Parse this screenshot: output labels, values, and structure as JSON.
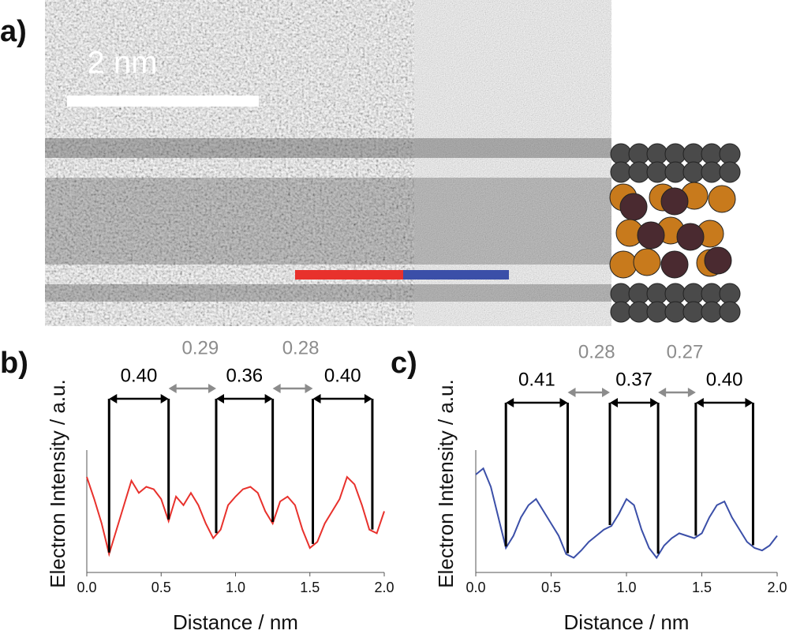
{
  "panel_a": {
    "label": "a)",
    "scale_bar": "2 nm"
  },
  "chart_data": [
    {
      "type": "line",
      "panel_label": "b)",
      "xlabel": "Distance / nm",
      "ylabel": "Electron Intensity / a.u.",
      "xlim": [
        0,
        2
      ],
      "xticks": [
        {
          "value": 0,
          "label": "0.0"
        },
        0.5,
        {
          "value": 1,
          "label": "1.0"
        },
        1.5,
        {
          "value": 2,
          "label": "2.0"
        }
      ],
      "ylim": [
        0,
        1
      ],
      "color": "#e8312c",
      "x": [
        0,
        0.05,
        0.1,
        0.15,
        0.2,
        0.25,
        0.3,
        0.35,
        0.4,
        0.45,
        0.5,
        0.55,
        0.6,
        0.65,
        0.7,
        0.75,
        0.8,
        0.85,
        0.9,
        0.95,
        1,
        1.05,
        1.1,
        1.15,
        1.2,
        1.25,
        1.3,
        1.35,
        1.4,
        1.45,
        1.5,
        1.55,
        1.6,
        1.65,
        1.7,
        1.75,
        1.8,
        1.85,
        1.9,
        1.95,
        2
      ],
      "values": [
        0.78,
        0.6,
        0.4,
        0.15,
        0.35,
        0.55,
        0.75,
        0.65,
        0.7,
        0.68,
        0.6,
        0.42,
        0.62,
        0.55,
        0.65,
        0.55,
        0.4,
        0.28,
        0.35,
        0.55,
        0.62,
        0.68,
        0.7,
        0.65,
        0.5,
        0.4,
        0.58,
        0.62,
        0.55,
        0.35,
        0.2,
        0.25,
        0.4,
        0.5,
        0.6,
        0.78,
        0.72,
        0.55,
        0.35,
        0.32,
        0.5
      ],
      "annotations": [
        {
          "text": "0.40",
          "start": 0.15,
          "end": 0.55,
          "color": "#000000"
        },
        {
          "text": "0.29",
          "start": 0.55,
          "end": 0.87,
          "color": "#8c8c8c"
        },
        {
          "text": "0.36",
          "start": 0.87,
          "end": 1.25,
          "color": "#000000"
        },
        {
          "text": "0.28",
          "start": 1.25,
          "end": 1.52,
          "color": "#8c8c8c"
        },
        {
          "text": "0.40",
          "start": 1.52,
          "end": 1.92,
          "color": "#000000"
        }
      ]
    },
    {
      "type": "line",
      "panel_label": "c)",
      "xlabel": "Distance / nm",
      "ylabel": "Electron Intensity / a.u.",
      "xlim": [
        0,
        2
      ],
      "xticks": [
        {
          "value": 0,
          "label": "0.0"
        },
        0.5,
        {
          "value": 1,
          "label": "1.0"
        },
        1.5,
        {
          "value": 2,
          "label": "2.0"
        }
      ],
      "ylim": [
        0,
        1
      ],
      "color": "#3b4fa8",
      "x": [
        0,
        0.05,
        0.1,
        0.15,
        0.2,
        0.25,
        0.3,
        0.35,
        0.4,
        0.45,
        0.5,
        0.55,
        0.6,
        0.65,
        0.7,
        0.75,
        0.8,
        0.85,
        0.9,
        0.95,
        1,
        1.05,
        1.1,
        1.15,
        1.2,
        1.25,
        1.3,
        1.35,
        1.4,
        1.45,
        1.5,
        1.55,
        1.6,
        1.65,
        1.7,
        1.75,
        1.8,
        1.85,
        1.9,
        1.95,
        2
      ],
      "values": [
        0.8,
        0.85,
        0.7,
        0.45,
        0.2,
        0.3,
        0.45,
        0.55,
        0.6,
        0.5,
        0.4,
        0.3,
        0.15,
        0.12,
        0.18,
        0.25,
        0.3,
        0.35,
        0.38,
        0.48,
        0.6,
        0.55,
        0.35,
        0.2,
        0.12,
        0.22,
        0.28,
        0.32,
        0.3,
        0.28,
        0.32,
        0.45,
        0.55,
        0.58,
        0.45,
        0.35,
        0.25,
        0.2,
        0.18,
        0.22,
        0.3
      ],
      "annotations": [
        {
          "text": "0.41",
          "start": 0.2,
          "end": 0.61,
          "color": "#000000"
        },
        {
          "text": "0.28",
          "start": 0.61,
          "end": 0.89,
          "color": "#8c8c8c"
        },
        {
          "text": "0.37",
          "start": 0.89,
          "end": 1.21,
          "color": "#000000"
        },
        {
          "text": "0.27",
          "start": 1.21,
          "end": 1.46,
          "color": "#8c8c8c"
        },
        {
          "text": "0.40",
          "start": 1.46,
          "end": 1.84,
          "color": "#000000"
        }
      ]
    }
  ]
}
